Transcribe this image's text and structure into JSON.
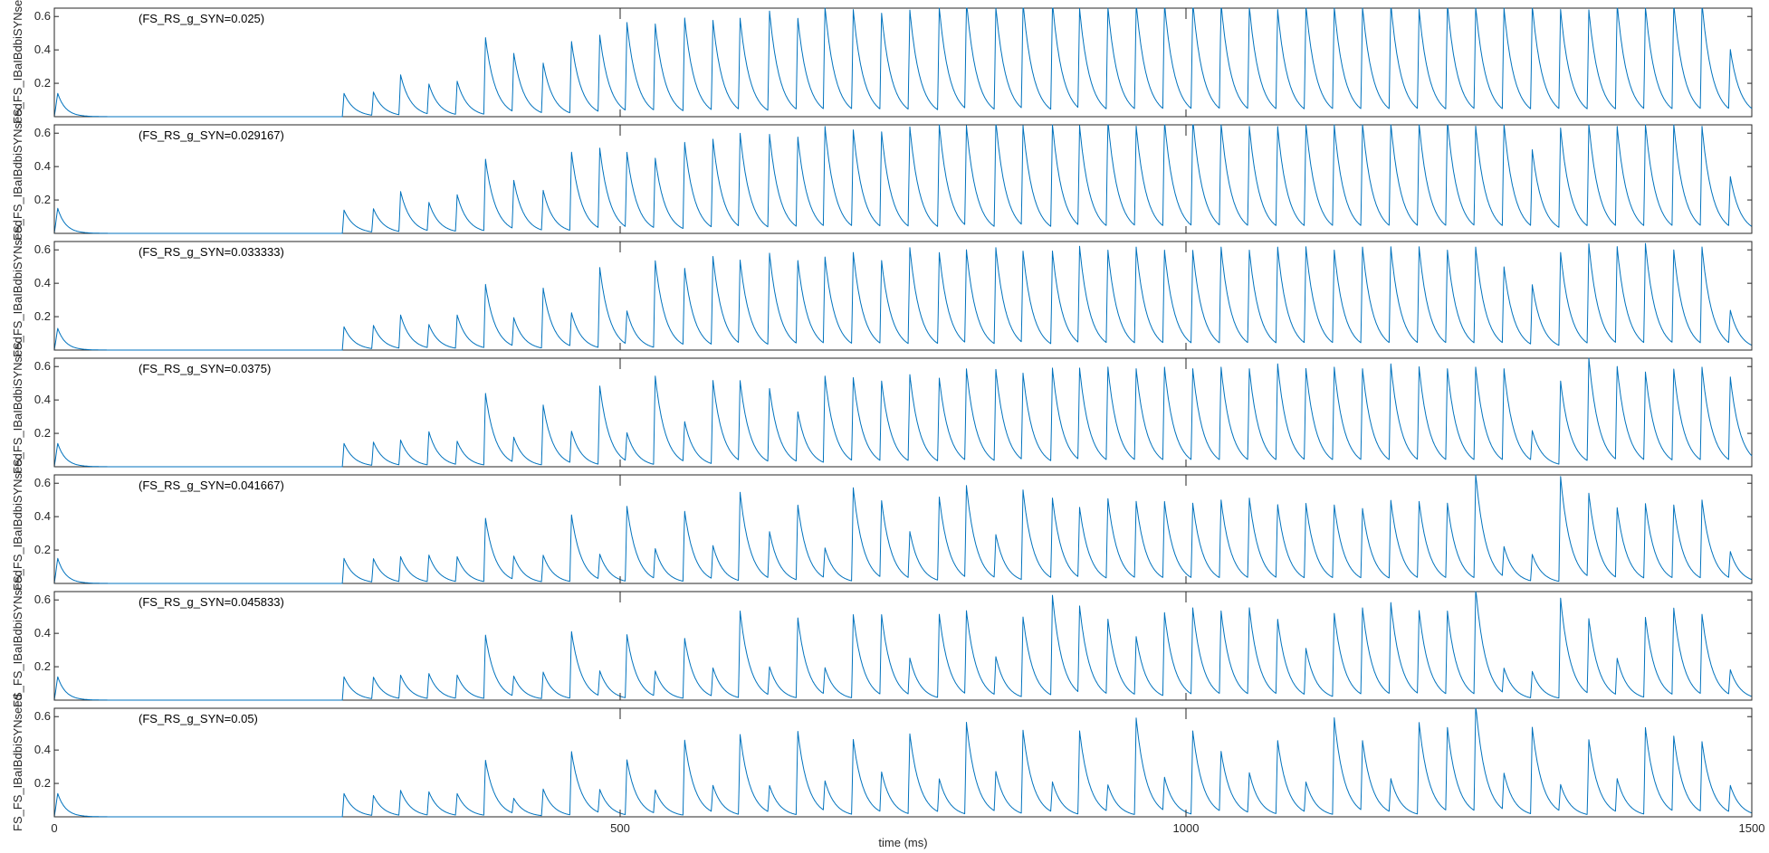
{
  "chart_data": {
    "type": "line",
    "xlabel": "time (ms)",
    "ylabel": "FS_FS_IBaIBdbiSYNseed",
    "xlim": [
      0,
      1500
    ],
    "ylim": [
      0,
      0.65
    ],
    "xticks": [
      0,
      500,
      1000,
      1500
    ],
    "yticks": [
      0.2,
      0.4,
      0.6
    ],
    "grid": false,
    "line_color": "#0072BD",
    "panels": [
      {
        "title": "(FS_RS_g_SYN=0.025)",
        "initial_peak": 0.14,
        "burst_onset": 255,
        "spike_times": [
          256,
          282,
          306,
          331,
          356,
          381,
          406,
          432,
          457,
          482,
          506,
          531,
          557,
          582,
          606,
          632,
          657,
          681,
          706,
          731,
          756,
          782,
          806,
          832,
          856,
          882,
          906,
          931,
          956,
          981,
          1006,
          1031,
          1056,
          1081,
          1106,
          1131,
          1156,
          1181,
          1206,
          1231,
          1256,
          1281,
          1306,
          1331,
          1356,
          1381,
          1406,
          1431,
          1456,
          1481
        ],
        "spike_peaks": [
          0.14,
          0.14,
          0.24,
          0.18,
          0.2,
          0.46,
          0.35,
          0.3,
          0.43,
          0.46,
          0.53,
          0.52,
          0.56,
          0.54,
          0.55,
          0.6,
          0.55,
          0.62,
          0.6,
          0.58,
          0.6,
          0.62,
          0.65,
          0.62,
          0.64,
          0.65,
          0.6,
          0.62,
          0.64,
          0.64,
          0.65,
          0.64,
          0.62,
          0.6,
          0.63,
          0.62,
          0.62,
          0.64,
          0.6,
          0.64,
          0.62,
          0.61,
          0.63,
          0.6,
          0.6,
          0.64,
          0.62,
          0.64,
          0.64,
          0.36
        ]
      },
      {
        "title": "(FS_RS_g_SYN=0.029167)",
        "initial_peak": 0.15,
        "burst_onset": 255,
        "spike_times": [
          256,
          282,
          306,
          331,
          356,
          381,
          406,
          432,
          457,
          482,
          506,
          531,
          557,
          582,
          606,
          632,
          657,
          681,
          706,
          731,
          756,
          782,
          806,
          832,
          856,
          882,
          906,
          931,
          956,
          981,
          1006,
          1031,
          1056,
          1081,
          1106,
          1131,
          1156,
          1181,
          1206,
          1231,
          1256,
          1281,
          1306,
          1331,
          1356,
          1381,
          1406,
          1431,
          1456,
          1481
        ],
        "spike_peaks": [
          0.14,
          0.14,
          0.24,
          0.17,
          0.22,
          0.43,
          0.29,
          0.24,
          0.47,
          0.48,
          0.45,
          0.42,
          0.52,
          0.53,
          0.56,
          0.56,
          0.54,
          0.6,
          0.58,
          0.57,
          0.6,
          0.62,
          0.6,
          0.64,
          0.6,
          0.62,
          0.6,
          0.64,
          0.6,
          0.64,
          0.65,
          0.62,
          0.6,
          0.6,
          0.62,
          0.61,
          0.62,
          0.62,
          0.62,
          0.64,
          0.6,
          0.62,
          0.46,
          0.6,
          0.62,
          0.6,
          0.62,
          0.62,
          0.6,
          0.3
        ]
      },
      {
        "title": "(FS_RS_g_SYN=0.033333)",
        "initial_peak": 0.13,
        "burst_onset": 255,
        "spike_times": [
          256,
          282,
          306,
          331,
          356,
          381,
          406,
          432,
          457,
          482,
          506,
          531,
          557,
          582,
          606,
          632,
          657,
          681,
          706,
          731,
          756,
          782,
          806,
          832,
          856,
          882,
          906,
          931,
          956,
          981,
          1006,
          1031,
          1056,
          1081,
          1106,
          1131,
          1156,
          1181,
          1206,
          1231,
          1256,
          1281,
          1306,
          1331,
          1356,
          1381,
          1406,
          1431,
          1456,
          1481
        ],
        "spike_peaks": [
          0.14,
          0.14,
          0.2,
          0.14,
          0.2,
          0.38,
          0.17,
          0.36,
          0.2,
          0.48,
          0.2,
          0.52,
          0.46,
          0.53,
          0.5,
          0.55,
          0.5,
          0.52,
          0.55,
          0.5,
          0.58,
          0.55,
          0.56,
          0.58,
          0.55,
          0.56,
          0.58,
          0.56,
          0.58,
          0.56,
          0.56,
          0.58,
          0.56,
          0.58,
          0.58,
          0.56,
          0.58,
          0.58,
          0.58,
          0.56,
          0.58,
          0.46,
          0.36,
          0.56,
          0.6,
          0.58,
          0.6,
          0.56,
          0.58,
          0.2
        ]
      },
      {
        "title": "(FS_RS_g_SYN=0.0375)",
        "initial_peak": 0.14,
        "burst_onset": 255,
        "spike_times": [
          256,
          282,
          306,
          331,
          356,
          381,
          406,
          432,
          457,
          482,
          506,
          531,
          557,
          582,
          606,
          632,
          657,
          681,
          706,
          731,
          756,
          782,
          806,
          832,
          856,
          882,
          906,
          931,
          956,
          981,
          1006,
          1031,
          1056,
          1081,
          1106,
          1131,
          1156,
          1181,
          1206,
          1231,
          1256,
          1281,
          1306,
          1331,
          1356,
          1381,
          1406,
          1431,
          1456,
          1481
        ],
        "spike_peaks": [
          0.14,
          0.14,
          0.15,
          0.2,
          0.14,
          0.43,
          0.15,
          0.36,
          0.19,
          0.47,
          0.17,
          0.53,
          0.24,
          0.5,
          0.48,
          0.44,
          0.3,
          0.52,
          0.5,
          0.48,
          0.52,
          0.5,
          0.55,
          0.55,
          0.52,
          0.56,
          0.55,
          0.56,
          0.55,
          0.56,
          0.55,
          0.56,
          0.55,
          0.58,
          0.55,
          0.56,
          0.55,
          0.58,
          0.56,
          0.55,
          0.56,
          0.55,
          0.18,
          0.5,
          0.62,
          0.56,
          0.53,
          0.55,
          0.56,
          0.5
        ]
      },
      {
        "title": "(FS_RS_g_SYN=0.041667)",
        "initial_peak": 0.15,
        "burst_onset": 255,
        "spike_times": [
          256,
          282,
          306,
          331,
          356,
          381,
          406,
          432,
          457,
          482,
          506,
          531,
          557,
          582,
          606,
          632,
          657,
          681,
          706,
          731,
          756,
          782,
          806,
          832,
          856,
          882,
          906,
          931,
          956,
          981,
          1006,
          1031,
          1056,
          1081,
          1106,
          1131,
          1156,
          1181,
          1206,
          1231,
          1256,
          1281,
          1306,
          1331,
          1356,
          1381,
          1406,
          1431,
          1456,
          1481
        ],
        "spike_peaks": [
          0.15,
          0.14,
          0.15,
          0.16,
          0.15,
          0.38,
          0.14,
          0.16,
          0.4,
          0.15,
          0.45,
          0.18,
          0.42,
          0.2,
          0.53,
          0.28,
          0.45,
          0.18,
          0.56,
          0.46,
          0.28,
          0.5,
          0.55,
          0.26,
          0.54,
          0.48,
          0.42,
          0.48,
          0.46,
          0.46,
          0.45,
          0.47,
          0.48,
          0.44,
          0.45,
          0.44,
          0.42,
          0.47,
          0.46,
          0.45,
          0.63,
          0.18,
          0.16,
          0.63,
          0.5,
          0.42,
          0.45,
          0.44,
          0.47,
          0.16
        ]
      },
      {
        "title": "(FS_RS_g_SYN=0.045833)",
        "initial_peak": 0.14,
        "burst_onset": 255,
        "spike_times": [
          256,
          282,
          306,
          331,
          356,
          381,
          406,
          432,
          457,
          482,
          506,
          531,
          557,
          582,
          606,
          632,
          657,
          681,
          706,
          731,
          756,
          782,
          806,
          832,
          856,
          882,
          906,
          931,
          956,
          981,
          1006,
          1031,
          1056,
          1081,
          1106,
          1131,
          1156,
          1181,
          1206,
          1231,
          1256,
          1281,
          1306,
          1331,
          1356,
          1381,
          1406,
          1431,
          1456,
          1481
        ],
        "spike_peaks": [
          0.14,
          0.13,
          0.14,
          0.15,
          0.14,
          0.38,
          0.12,
          0.16,
          0.4,
          0.15,
          0.38,
          0.15,
          0.36,
          0.17,
          0.52,
          0.17,
          0.48,
          0.16,
          0.5,
          0.48,
          0.22,
          0.5,
          0.5,
          0.23,
          0.48,
          0.6,
          0.52,
          0.45,
          0.35,
          0.5,
          0.52,
          0.5,
          0.52,
          0.45,
          0.28,
          0.5,
          0.52,
          0.55,
          0.5,
          0.5,
          0.64,
          0.15,
          0.16,
          0.6,
          0.45,
          0.22,
          0.48,
          0.52,
          0.48,
          0.15
        ]
      },
      {
        "title": "(FS_RS_g_SYN=0.05)",
        "initial_peak": 0.14,
        "burst_onset": 255,
        "spike_times": [
          256,
          282,
          306,
          331,
          356,
          381,
          406,
          432,
          457,
          482,
          506,
          531,
          557,
          582,
          606,
          632,
          657,
          681,
          706,
          731,
          756,
          782,
          806,
          832,
          856,
          882,
          906,
          931,
          956,
          981,
          1006,
          1031,
          1056,
          1081,
          1106,
          1131,
          1156,
          1181,
          1206,
          1231,
          1256,
          1281,
          1306,
          1331,
          1356,
          1381,
          1406,
          1431,
          1456,
          1481
        ],
        "spike_peaks": [
          0.14,
          0.12,
          0.15,
          0.14,
          0.13,
          0.33,
          0.09,
          0.16,
          0.38,
          0.14,
          0.33,
          0.14,
          0.45,
          0.16,
          0.48,
          0.16,
          0.5,
          0.18,
          0.45,
          0.24,
          0.48,
          0.2,
          0.55,
          0.24,
          0.5,
          0.18,
          0.5,
          0.16,
          0.58,
          0.2,
          0.5,
          0.36,
          0.24,
          0.44,
          0.18,
          0.58,
          0.42,
          0.2,
          0.55,
          0.5,
          0.64,
          0.22,
          0.52,
          0.16,
          0.45,
          0.2,
          0.52,
          0.45,
          0.42,
          0.16
        ]
      }
    ]
  }
}
